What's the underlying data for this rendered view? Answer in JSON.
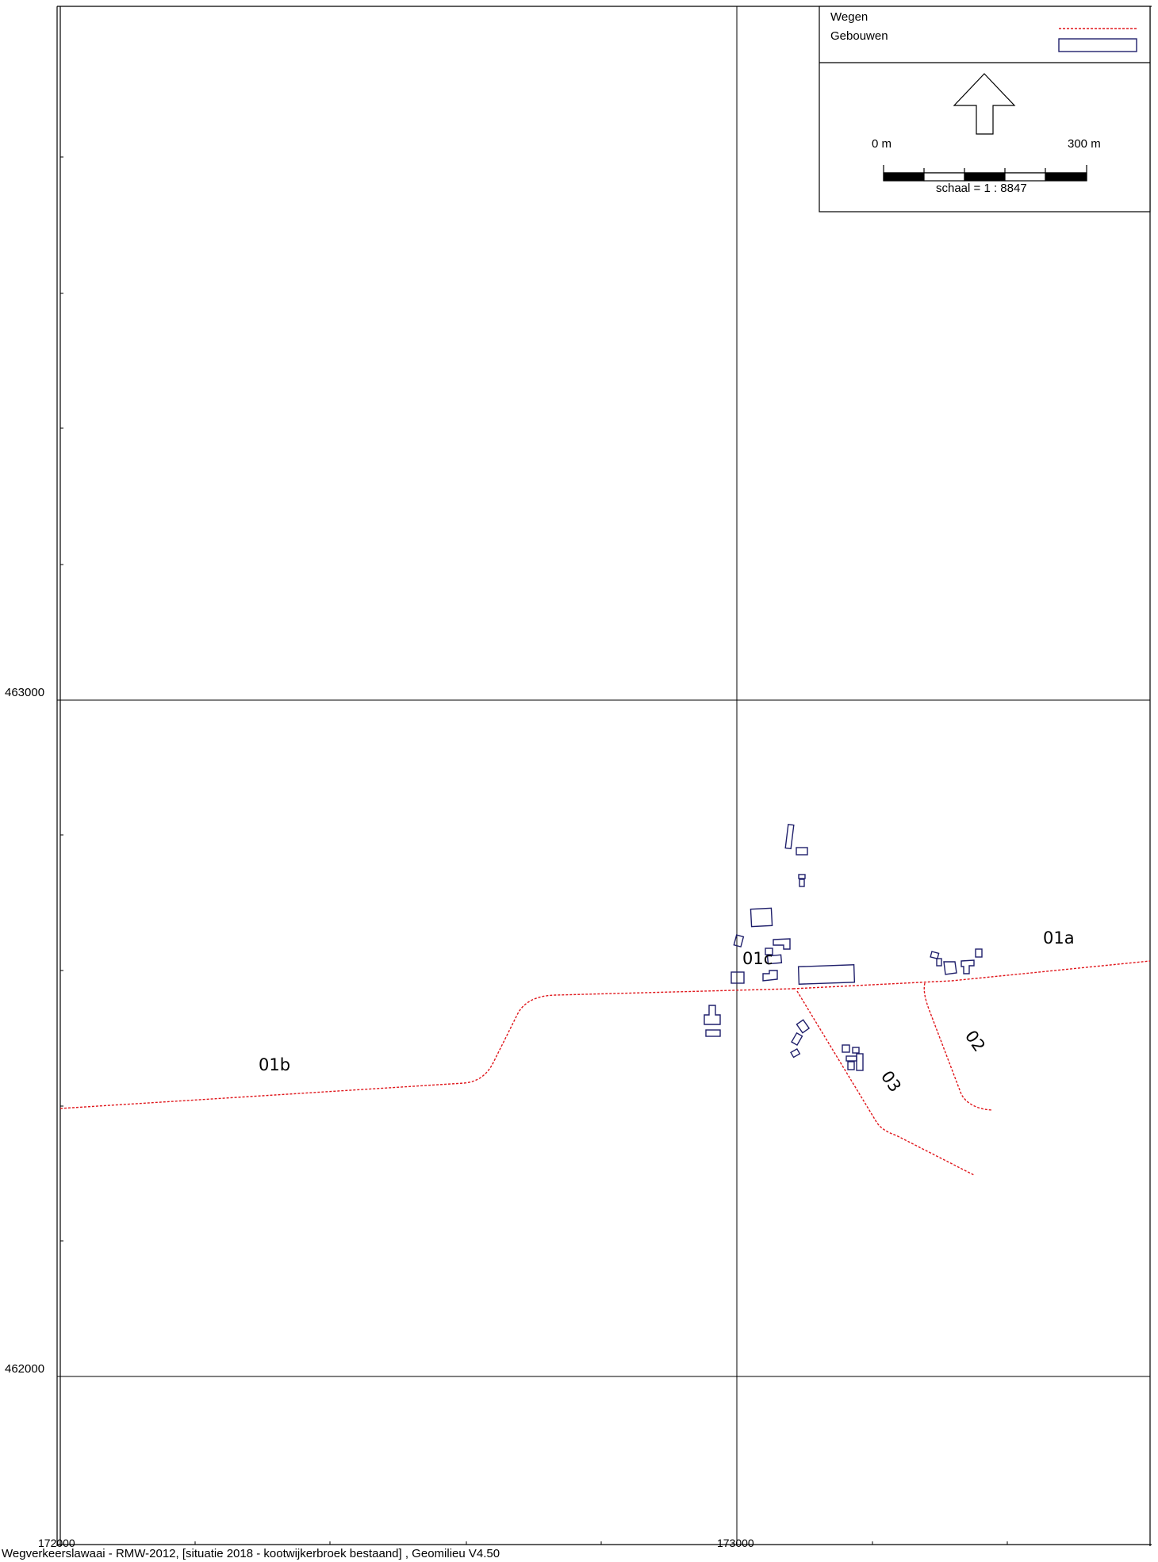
{
  "colors": {
    "road": "#e0161b",
    "building": "#1f1f6b",
    "frame": "#000000"
  },
  "axes": {
    "x_labels": [
      "172000",
      "173000"
    ],
    "y_labels": [
      "463000",
      "462000"
    ]
  },
  "legend": {
    "items": [
      {
        "label": "Wegen",
        "symbol": "dashed-red-line"
      },
      {
        "label": "Gebouwen",
        "symbol": "navy-outline-rectangle"
      }
    ],
    "north_arrow_icon": "north-arrow-icon",
    "scale_start": "0 m",
    "scale_end": "300 m",
    "scale_text": "schaal = 1 : 8847"
  },
  "roads": [
    {
      "id": "01a",
      "label": "01a"
    },
    {
      "id": "01b",
      "label": "01b"
    },
    {
      "id": "01c",
      "label": "01c"
    },
    {
      "id": "02",
      "label": "02"
    },
    {
      "id": "03",
      "label": "03"
    }
  ],
  "footer": "Wegverkeerslawaai - RMW-2012, [situatie 2018 - kootwijkerbroek bestaand] , Geomilieu V4.50"
}
